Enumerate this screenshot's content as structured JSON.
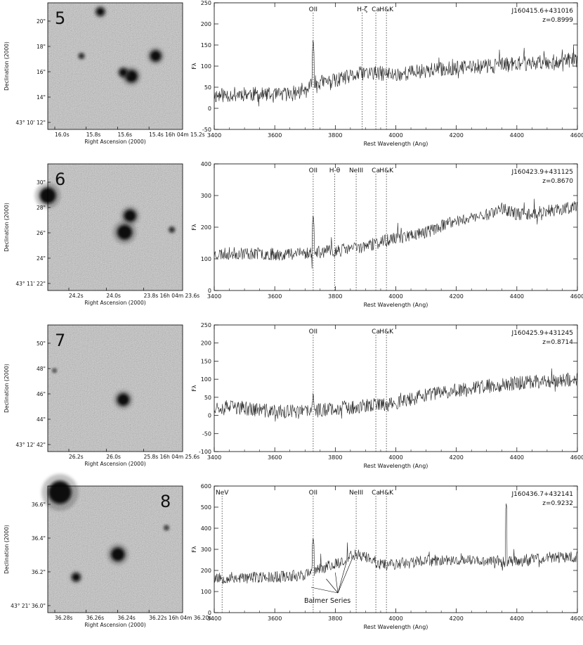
{
  "figure": {
    "rows": [
      {
        "label": "5",
        "image": {
          "ylabel": "Declination (2000)",
          "xlabel": "Right Ascension (2000)",
          "yticks": [
            "20\"",
            "18\"",
            "16\"",
            "14\"",
            "43° 10' 12\""
          ],
          "xticks": [
            "16.0s",
            "15.8s",
            "15.6s",
            "15.4s 16h 04m 15.2s"
          ],
          "blobs": [
            {
              "name": "object-blob",
              "u": 0.39,
              "v": 0.07,
              "r": 0.03
            },
            {
              "name": "galaxy-core",
              "u": 0.62,
              "v": 0.58,
              "r": 0.045
            },
            {
              "name": "galaxy-arm",
              "u": 0.8,
              "v": 0.42,
              "r": 0.04
            },
            {
              "name": "galaxy-knot",
              "u": 0.56,
              "v": 0.55,
              "r": 0.03
            },
            {
              "name": "streak",
              "u": 0.25,
              "v": 0.42,
              "r": 0.018
            }
          ]
        },
        "spectrum": {
          "id": "J160415.6+431016",
          "z": "z=0.8999",
          "ylim": [
            -50,
            250
          ],
          "yticks": [
            "250",
            "200",
            "150",
            "100",
            "50",
            "0",
            "-50"
          ],
          "ytickvals": [
            250,
            200,
            150,
            100,
            50,
            0,
            -50
          ],
          "lines": [
            {
              "label": "OII",
              "x": 3727
            },
            {
              "label": "H-ζ",
              "x": 3889
            },
            {
              "label": "Ca",
              "x": 3934
            },
            {
              "label": "H&K",
              "x": 3969
            }
          ],
          "baseline": [
            [
              3400,
              30
            ],
            [
              3500,
              35
            ],
            [
              3600,
              30
            ],
            [
              3700,
              40
            ],
            [
              3730,
              60
            ],
            [
              3800,
              65
            ],
            [
              3900,
              85
            ],
            [
              4000,
              80
            ],
            [
              4100,
              90
            ],
            [
              4200,
              95
            ],
            [
              4300,
              100
            ],
            [
              4400,
              105
            ],
            [
              4500,
              110
            ],
            [
              4600,
              115
            ]
          ],
          "noise": 18,
          "seed": 11,
          "spikes": [
            [
              3727,
              170
            ]
          ]
        }
      },
      {
        "label": "6",
        "image": {
          "ylabel": "Declination (2000)",
          "xlabel": "Right Ascension (2000)",
          "yticks": [
            "30\"",
            "28\"",
            "26\"",
            "24\"",
            "43° 11' 22\""
          ],
          "xticks": [
            "24.2s",
            "24.0s",
            "23.8s 16h 04m 23.6s"
          ],
          "blobs": [
            {
              "name": "galaxy-upper",
              "u": 0.61,
              "v": 0.41,
              "r": 0.045
            },
            {
              "name": "galaxy-lower",
              "u": 0.57,
              "v": 0.54,
              "r": 0.055
            },
            {
              "name": "edge-object",
              "u": 0.0,
              "v": 0.25,
              "r": 0.06
            },
            {
              "name": "small-object",
              "u": 0.92,
              "v": 0.52,
              "r": 0.018
            }
          ]
        },
        "spectrum": {
          "id": "J160423.9+431125",
          "z": "z=0.8670",
          "ylim": [
            0,
            400
          ],
          "yticks": [
            "400",
            "300",
            "200",
            "100",
            "0"
          ],
          "ytickvals": [
            400,
            300,
            200,
            100,
            0
          ],
          "lines": [
            {
              "label": "OII",
              "x": 3727
            },
            {
              "label": "H-θ",
              "x": 3798
            },
            {
              "label": "NeIII",
              "x": 3869
            },
            {
              "label": "Ca",
              "x": 3934
            },
            {
              "label": "H&K",
              "x": 3969
            }
          ],
          "baseline": [
            [
              3400,
              115
            ],
            [
              3500,
              118
            ],
            [
              3600,
              115
            ],
            [
              3700,
              118
            ],
            [
              3800,
              125
            ],
            [
              3900,
              140
            ],
            [
              4000,
              165
            ],
            [
              4100,
              185
            ],
            [
              4200,
              220
            ],
            [
              4300,
              240
            ],
            [
              4350,
              260
            ],
            [
              4400,
              240
            ],
            [
              4500,
              250
            ],
            [
              4600,
              265
            ]
          ],
          "noise": 20,
          "seed": 23,
          "spikes": [
            [
              3727,
              245
            ]
          ]
        }
      },
      {
        "label": "7",
        "image": {
          "ylabel": "Declination (2000)",
          "xlabel": "Right Ascension (2000)",
          "yticks": [
            "50\"",
            "48\"",
            "46\"",
            "44\"",
            "43° 12' 42\""
          ],
          "xticks": [
            "26.2s",
            "26.0s",
            "25.8s 16h 04m 25.6s"
          ],
          "blobs": [
            {
              "name": "galaxy",
              "u": 0.56,
              "v": 0.59,
              "r": 0.045
            },
            {
              "name": "faint-object",
              "u": 0.05,
              "v": 0.36,
              "r": 0.012
            }
          ]
        },
        "spectrum": {
          "id": "J160425.9+431245",
          "z": "z=0.8714",
          "ylim": [
            -100,
            250
          ],
          "yticks": [
            "250",
            "200",
            "150",
            "100",
            "50",
            "0",
            "-50",
            "-100"
          ],
          "ytickvals": [
            250,
            200,
            150,
            100,
            50,
            0,
            -50,
            -100
          ],
          "lines": [
            {
              "label": "OII",
              "x": 3727
            },
            {
              "label": "Ca",
              "x": 3934
            },
            {
              "label": "H&K",
              "x": 3969
            }
          ],
          "baseline": [
            [
              3400,
              25
            ],
            [
              3500,
              20
            ],
            [
              3600,
              10
            ],
            [
              3700,
              10
            ],
            [
              3800,
              20
            ],
            [
              3900,
              25
            ],
            [
              4000,
              35
            ],
            [
              4100,
              55
            ],
            [
              4200,
              70
            ],
            [
              4300,
              80
            ],
            [
              4400,
              90
            ],
            [
              4500,
              95
            ],
            [
              4600,
              100
            ]
          ],
          "noise": 20,
          "seed": 37,
          "spikes": [
            [
              3727,
              70
            ]
          ]
        }
      },
      {
        "label": "8",
        "image": {
          "ylabel": "Declination (2000)",
          "xlabel": "Right Ascension (2000)",
          "yticks": [
            "36.6\"",
            "36.4\"",
            "36.2\"",
            "43° 21' 36.0\""
          ],
          "xticks": [
            "36.28s",
            "36.26s",
            "36.24s",
            "36.22s 16h 04m 36.20s"
          ],
          "blobs": [
            {
              "name": "bright-star",
              "u": 0.09,
              "v": 0.05,
              "r": 0.085
            },
            {
              "name": "target-galaxy",
              "u": 0.52,
              "v": 0.54,
              "r": 0.05
            },
            {
              "name": "companion",
              "u": 0.21,
              "v": 0.72,
              "r": 0.03
            },
            {
              "name": "faint-right",
              "u": 0.88,
              "v": 0.33,
              "r": 0.015
            }
          ]
        },
        "spectrum": {
          "id": "J160436.7+432141",
          "z": "z=0.9232",
          "ylim": [
            0,
            600
          ],
          "yticks": [
            "600",
            "500",
            "400",
            "300",
            "200",
            "100",
            "0"
          ],
          "ytickvals": [
            600,
            500,
            400,
            300,
            200,
            100,
            0
          ],
          "lines": [
            {
              "label": "NeV",
              "x": 3426
            },
            {
              "label": "OII",
              "x": 3727
            },
            {
              "label": "NeIII",
              "x": 3869
            },
            {
              "label": "Ca",
              "x": 3934
            },
            {
              "label": "H&K",
              "x": 3969
            }
          ],
          "baseline": [
            [
              3400,
              165
            ],
            [
              3500,
              165
            ],
            [
              3600,
              170
            ],
            [
              3700,
              180
            ],
            [
              3730,
              200
            ],
            [
              3800,
              230
            ],
            [
              3870,
              280
            ],
            [
              3950,
              230
            ],
            [
              4000,
              230
            ],
            [
              4100,
              245
            ],
            [
              4200,
              250
            ],
            [
              4300,
              245
            ],
            [
              4400,
              240
            ],
            [
              4500,
              260
            ],
            [
              4600,
              265
            ]
          ],
          "noise": 28,
          "seed": 53,
          "spikes": [
            [
              3727,
              360
            ],
            [
              4365,
              520
            ]
          ],
          "annotation": "Balmer Series"
        }
      }
    ],
    "spectrum_axes": {
      "xlim": [
        3400,
        4600
      ],
      "xticks": [
        "3400",
        "3600",
        "3800",
        "4000",
        "4200",
        "4400",
        "4600"
      ],
      "xtickvals": [
        3400,
        3600,
        3800,
        4000,
        4200,
        4400,
        4600
      ],
      "xlabel": "Rest Wavelength (Ang)",
      "ylabel": "Fλ"
    }
  }
}
